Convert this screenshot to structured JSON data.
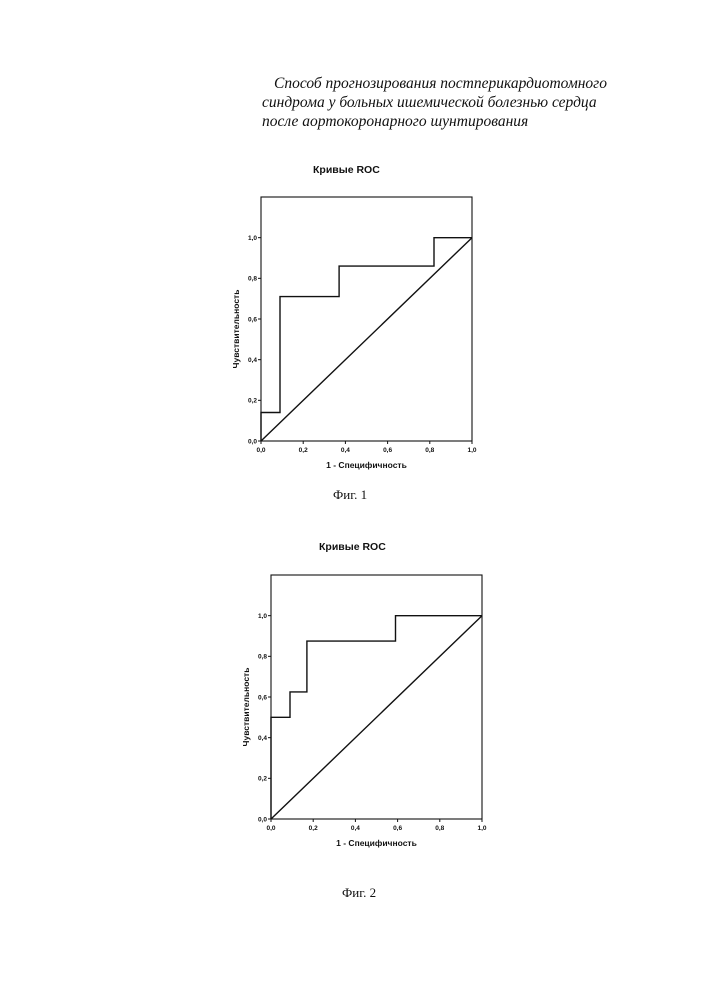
{
  "document": {
    "title_lines": [
      "Способ прогнозирования постперикардиотомного",
      "синдрома у больных ишемической болезнью сердца",
      "после аортокоронарного шунтирования"
    ]
  },
  "figures": [
    {
      "caption": "Фиг. 1"
    },
    {
      "caption": "Фиг. 2"
    }
  ],
  "chart_data": [
    {
      "type": "line",
      "title": "Кривые ROC",
      "xlabel": "1 - Специфичность",
      "ylabel": "Чувствительность",
      "xlim": [
        0,
        1
      ],
      "ylim": [
        0,
        1
      ],
      "x_ticks": [
        "0,0",
        "0,2",
        "0,4",
        "0,6",
        "0,8",
        "1,0"
      ],
      "y_ticks": [
        "0,0",
        "0,2",
        "0,4",
        "0,6",
        "0,8",
        "1,0"
      ],
      "grid": false,
      "series": [
        {
          "x": [
            0,
            0,
            0.09,
            0.09,
            0.37,
            0.37,
            0.82,
            0.82,
            1
          ],
          "y": [
            0,
            0.14,
            0.14,
            0.71,
            0.71,
            0.86,
            0.86,
            1,
            1
          ]
        },
        {
          "x": [
            0,
            1
          ],
          "y": [
            0,
            1
          ]
        }
      ]
    },
    {
      "type": "line",
      "title": "Кривые ROC",
      "xlabel": "1 - Специфичность",
      "ylabel": "Чувствительность",
      "xlim": [
        0,
        1
      ],
      "ylim": [
        0,
        1
      ],
      "x_ticks": [
        "0,0",
        "0,2",
        "0,4",
        "0,6",
        "0,8",
        "1,0"
      ],
      "y_ticks": [
        "0,0",
        "0,2",
        "0,4",
        "0,6",
        "0,8",
        "1,0"
      ],
      "grid": false,
      "series": [
        {
          "x": [
            0,
            0,
            0.09,
            0.09,
            0.17,
            0.17,
            0.59,
            0.59,
            1
          ],
          "y": [
            0,
            0.5,
            0.5,
            0.625,
            0.625,
            0.875,
            0.875,
            1,
            1
          ]
        },
        {
          "x": [
            0,
            1
          ],
          "y": [
            0,
            1
          ]
        }
      ]
    }
  ]
}
